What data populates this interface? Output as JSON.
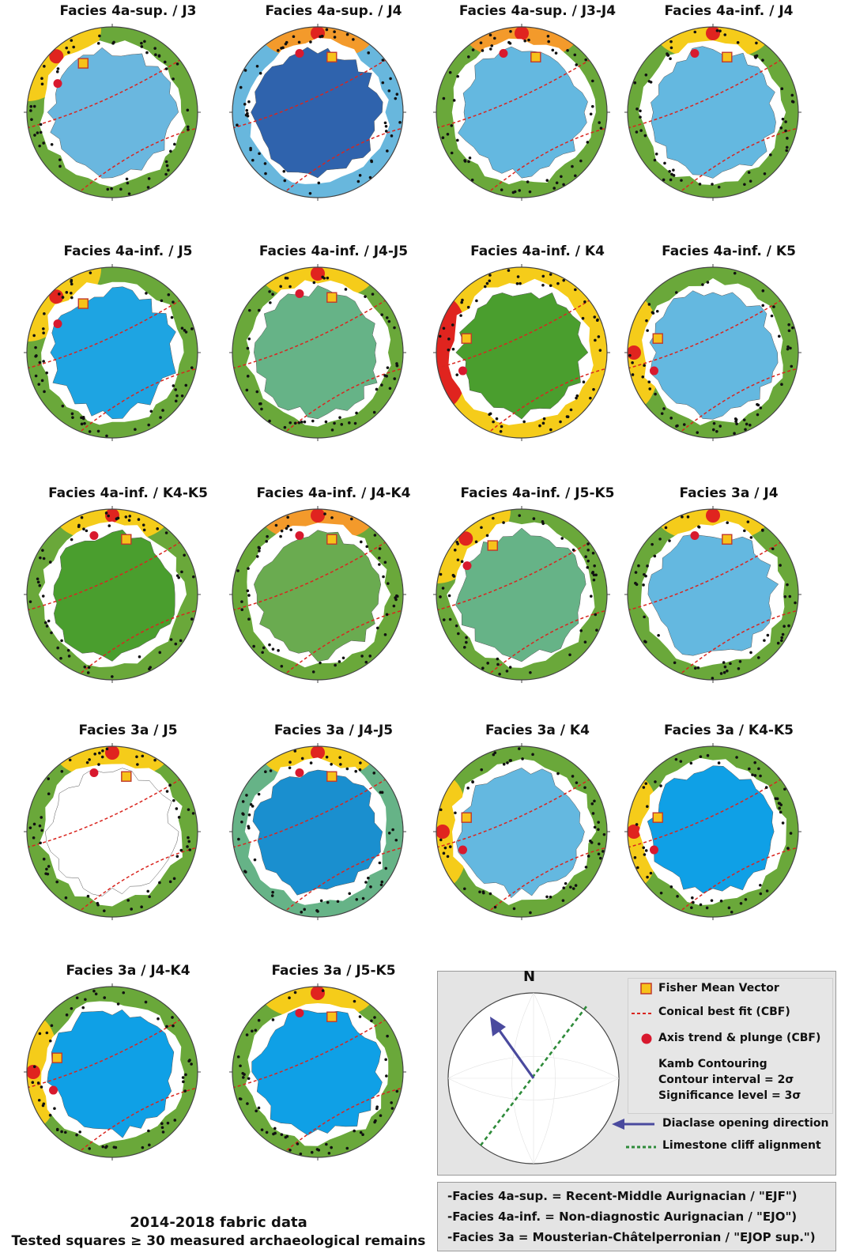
{
  "panels": [
    {
      "title": "Facies 4a-sup. / J3",
      "inner": "#6ab7df",
      "ring": "#6aa83a",
      "hot": "#f5cc1a",
      "hotside": "top-left"
    },
    {
      "title": "Facies 4a-sup. / J4",
      "inner": "#2f63ad",
      "ring": "#68b7dd",
      "hot": "#f39a2b",
      "hotside": "top"
    },
    {
      "title": "Facies 4a-sup. / J3-J4",
      "inner": "#64b8e0",
      "ring": "#6aa83a",
      "hot": "#f39a2b",
      "hotside": "top"
    },
    {
      "title": "Facies 4a-inf. / J4",
      "inner": "#64b8e0",
      "ring": "#6aa83a",
      "hot": "#f5cc1a",
      "hotside": "top"
    },
    {
      "title": "Facies 4a-inf. / J5",
      "inner": "#1ea4e2",
      "ring": "#6aa83a",
      "hot": "#f5cc1a",
      "hotside": "top-left"
    },
    {
      "title": "Facies 4a-inf. / J4-J5",
      "inner": "#66b387",
      "ring": "#6aa83a",
      "hot": "#f5cc1a",
      "hotside": "top"
    },
    {
      "title": "Facies 4a-inf. / K4",
      "inner": "#4a9e2e",
      "ring": "#f5cc1a",
      "hot": "#e0241f",
      "hotside": "left"
    },
    {
      "title": "Facies 4a-inf. / K5",
      "inner": "#64b8e0",
      "ring": "#6aa83a",
      "hot": "#f5cc1a",
      "hotside": "left"
    },
    {
      "title": "Facies 4a-inf. / K4-K5",
      "inner": "#4a9e2e",
      "ring": "#6aa83a",
      "hot": "#f5cc1a",
      "hotside": "top"
    },
    {
      "title": "Facies 4a-inf. / J4-K4",
      "inner": "#6aab50",
      "ring": "#6aa83a",
      "hot": "#f39a2b",
      "hotside": "top"
    },
    {
      "title": "Facies 4a-inf.  / J5-K5",
      "inner": "#66b387",
      "ring": "#6aa83a",
      "hot": "#f5cc1a",
      "hotside": "top-left"
    },
    {
      "title": "Facies 3a / J4",
      "inner": "#64b8e0",
      "ring": "#6aa83a",
      "hot": "#f5cc1a",
      "hotside": "right"
    },
    {
      "title": "Facies 3a / J5",
      "inner": "#ffffff",
      "ring": "#6aa83a",
      "hot": "#f5cc1a",
      "hotside": "right"
    },
    {
      "title": "Facies 3a / J4-J5",
      "inner": "#1a8fcf",
      "ring": "#66b387",
      "hot": "#f5cc1a",
      "hotside": "right"
    },
    {
      "title": "Facies 3a / K4",
      "inner": "#64b8e0",
      "ring": "#6aa83a",
      "hot": "#f5cc1a",
      "hotside": "left"
    },
    {
      "title": "Facies 3a / K4-K5",
      "inner": "#0fa0e6",
      "ring": "#6aa83a",
      "hot": "#f5cc1a",
      "hotside": "left"
    },
    {
      "title": "Facies 3a / J4-K4",
      "inner": "#0fa0e6",
      "ring": "#6aa83a",
      "hot": "#f5cc1a",
      "hotside": "left"
    },
    {
      "title": "Facies 3a / J5-K5",
      "inner": "#0fa0e6",
      "ring": "#6aa83a",
      "hot": "#f5cc1a",
      "hotside": "right"
    }
  ],
  "legend": {
    "north": "N",
    "fisher": "Fisher Mean Vector",
    "cbf": "Conical best fit (CBF)",
    "axis": "Axis trend & plunge (CBF)",
    "kamb": "Kamb Contouring",
    "interval": "Contour interval  = 2σ",
    "significance": "Significance level = 3σ",
    "diaclase": "Diaclase opening direction",
    "cliff": "Limestone cliff alignment"
  },
  "definitions": [
    "-Facies 4a-sup. = Recent-Middle Aurignacian / \"EJF\")",
    "-Facies 4a-inf.  = Non-diagnostic Aurignacian / \"EJO\")",
    "-Facies 3a  = Mousterian-Châtelperronian / \"EJOP sup.\")"
  ],
  "footer": {
    "line1": "2014-2018 fabric data",
    "line2": "Tested squares ≥ 30 measured archaeological remains"
  },
  "colors": {
    "red_marker": "#d8192e",
    "fisher_fill": "#f7c21a",
    "fisher_edge": "#c0392b",
    "cbf_line": "#d9251f",
    "arrow": "#4a4a9e",
    "cliff": "#2e8b3a"
  }
}
